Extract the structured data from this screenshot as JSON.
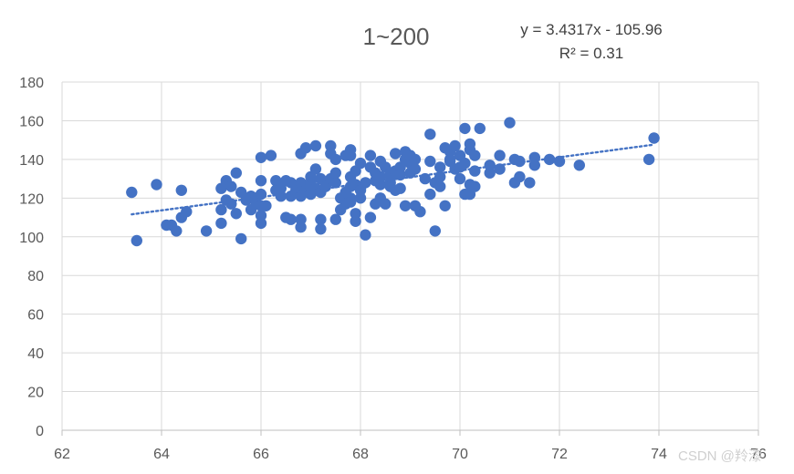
{
  "chart_data": {
    "type": "scatter",
    "title": "1~200",
    "xlabel": "",
    "ylabel": "",
    "xlim": [
      62,
      76
    ],
    "ylim": [
      0,
      180
    ],
    "x_ticks": [
      62,
      64,
      66,
      68,
      70,
      72,
      74,
      76
    ],
    "y_ticks": [
      0,
      20,
      40,
      60,
      80,
      100,
      120,
      140,
      160,
      180
    ],
    "grid": "horizontal",
    "legend": "none",
    "point_color": "#4472C4",
    "trendline": {
      "type": "linear",
      "slope": 3.4317,
      "intercept": -105.96,
      "equation_label": "y = 3.4317x - 105.96",
      "r2_label": "R² = 0.31",
      "style": "dotted",
      "color": "#4472C4"
    },
    "watermark": "CSDN @羚漆",
    "points": [
      [
        63.4,
        123
      ],
      [
        63.5,
        98
      ],
      [
        63.9,
        127
      ],
      [
        64.1,
        106
      ],
      [
        64.2,
        106
      ],
      [
        64.3,
        103
      ],
      [
        64.4,
        110
      ],
      [
        64.4,
        124
      ],
      [
        64.5,
        113
      ],
      [
        64.9,
        103
      ],
      [
        65.2,
        107
      ],
      [
        65.2,
        114
      ],
      [
        65.2,
        125
      ],
      [
        65.3,
        119
      ],
      [
        65.3,
        129
      ],
      [
        65.4,
        126
      ],
      [
        65.4,
        117
      ],
      [
        65.5,
        133
      ],
      [
        65.5,
        112
      ],
      [
        65.6,
        99
      ],
      [
        65.6,
        123
      ],
      [
        65.7,
        119
      ],
      [
        65.8,
        121
      ],
      [
        65.8,
        114
      ],
      [
        65.9,
        117
      ],
      [
        65.9,
        120
      ],
      [
        66.0,
        107
      ],
      [
        66.0,
        111
      ],
      [
        66.0,
        116
      ],
      [
        66.0,
        122
      ],
      [
        66.0,
        129
      ],
      [
        66.0,
        141
      ],
      [
        66.1,
        116
      ],
      [
        66.2,
        142
      ],
      [
        66.3,
        124
      ],
      [
        66.3,
        129
      ],
      [
        66.4,
        121
      ],
      [
        66.4,
        125
      ],
      [
        66.5,
        129
      ],
      [
        66.5,
        110
      ],
      [
        66.6,
        109
      ],
      [
        66.6,
        121
      ],
      [
        66.6,
        128
      ],
      [
        66.7,
        124
      ],
      [
        66.8,
        121
      ],
      [
        66.8,
        128
      ],
      [
        66.8,
        143
      ],
      [
        66.8,
        109
      ],
      [
        66.8,
        105
      ],
      [
        66.9,
        146
      ],
      [
        66.9,
        124
      ],
      [
        67.0,
        122
      ],
      [
        67.0,
        128
      ],
      [
        67.0,
        131
      ],
      [
        67.0,
        126
      ],
      [
        67.1,
        135
      ],
      [
        67.1,
        147
      ],
      [
        67.1,
        125
      ],
      [
        67.2,
        130
      ],
      [
        67.2,
        123
      ],
      [
        67.2,
        109
      ],
      [
        67.2,
        104
      ],
      [
        67.3,
        127
      ],
      [
        67.3,
        126
      ],
      [
        67.4,
        130
      ],
      [
        67.4,
        143
      ],
      [
        67.4,
        147
      ],
      [
        67.5,
        128
      ],
      [
        67.5,
        133
      ],
      [
        67.5,
        140
      ],
      [
        67.5,
        109
      ],
      [
        67.6,
        120
      ],
      [
        67.6,
        114
      ],
      [
        67.7,
        123
      ],
      [
        67.7,
        117
      ],
      [
        67.7,
        142
      ],
      [
        67.8,
        131
      ],
      [
        67.8,
        120
      ],
      [
        67.8,
        118
      ],
      [
        67.8,
        126
      ],
      [
        67.8,
        145
      ],
      [
        67.8,
        142
      ],
      [
        67.9,
        127
      ],
      [
        67.9,
        134
      ],
      [
        67.9,
        112
      ],
      [
        67.9,
        108
      ],
      [
        68.0,
        125
      ],
      [
        68.0,
        120
      ],
      [
        68.0,
        138
      ],
      [
        68.0,
        124
      ],
      [
        68.1,
        101
      ],
      [
        68.1,
        128
      ],
      [
        68.2,
        136
      ],
      [
        68.2,
        110
      ],
      [
        68.2,
        142
      ],
      [
        68.3,
        129
      ],
      [
        68.3,
        117
      ],
      [
        68.3,
        133
      ],
      [
        68.4,
        139
      ],
      [
        68.4,
        127
      ],
      [
        68.4,
        131
      ],
      [
        68.4,
        120
      ],
      [
        68.5,
        117
      ],
      [
        68.5,
        136
      ],
      [
        68.6,
        128
      ],
      [
        68.6,
        133
      ],
      [
        68.6,
        126
      ],
      [
        68.6,
        131
      ],
      [
        68.7,
        124
      ],
      [
        68.7,
        134
      ],
      [
        68.7,
        143
      ],
      [
        68.8,
        125
      ],
      [
        68.8,
        136
      ],
      [
        68.8,
        132
      ],
      [
        68.9,
        140
      ],
      [
        68.9,
        144
      ],
      [
        68.9,
        116
      ],
      [
        69.0,
        133
      ],
      [
        69.0,
        138
      ],
      [
        69.0,
        142
      ],
      [
        69.1,
        140
      ],
      [
        69.1,
        116
      ],
      [
        69.1,
        135
      ],
      [
        69.2,
        113
      ],
      [
        69.3,
        130
      ],
      [
        69.4,
        153
      ],
      [
        69.4,
        139
      ],
      [
        69.4,
        122
      ],
      [
        69.5,
        128
      ],
      [
        69.5,
        103
      ],
      [
        69.6,
        131
      ],
      [
        69.6,
        136
      ],
      [
        69.6,
        126
      ],
      [
        69.7,
        146
      ],
      [
        69.7,
        116
      ],
      [
        69.8,
        139
      ],
      [
        69.8,
        144
      ],
      [
        69.8,
        140
      ],
      [
        69.9,
        135
      ],
      [
        69.9,
        147
      ],
      [
        70.0,
        142
      ],
      [
        70.0,
        136
      ],
      [
        70.0,
        130
      ],
      [
        70.1,
        122
      ],
      [
        70.1,
        156
      ],
      [
        70.1,
        138
      ],
      [
        70.2,
        148
      ],
      [
        70.2,
        145
      ],
      [
        70.2,
        127
      ],
      [
        70.2,
        122
      ],
      [
        70.3,
        134
      ],
      [
        70.3,
        126
      ],
      [
        70.3,
        142
      ],
      [
        70.4,
        156
      ],
      [
        70.6,
        133
      ],
      [
        70.6,
        137
      ],
      [
        70.8,
        135
      ],
      [
        70.8,
        142
      ],
      [
        71.0,
        159
      ],
      [
        71.1,
        140
      ],
      [
        71.1,
        128
      ],
      [
        71.2,
        131
      ],
      [
        71.2,
        139
      ],
      [
        71.4,
        128
      ],
      [
        71.5,
        141
      ],
      [
        71.5,
        137
      ],
      [
        71.8,
        140
      ],
      [
        72.0,
        139
      ],
      [
        72.4,
        137
      ],
      [
        73.8,
        140
      ],
      [
        73.9,
        151
      ]
    ]
  }
}
